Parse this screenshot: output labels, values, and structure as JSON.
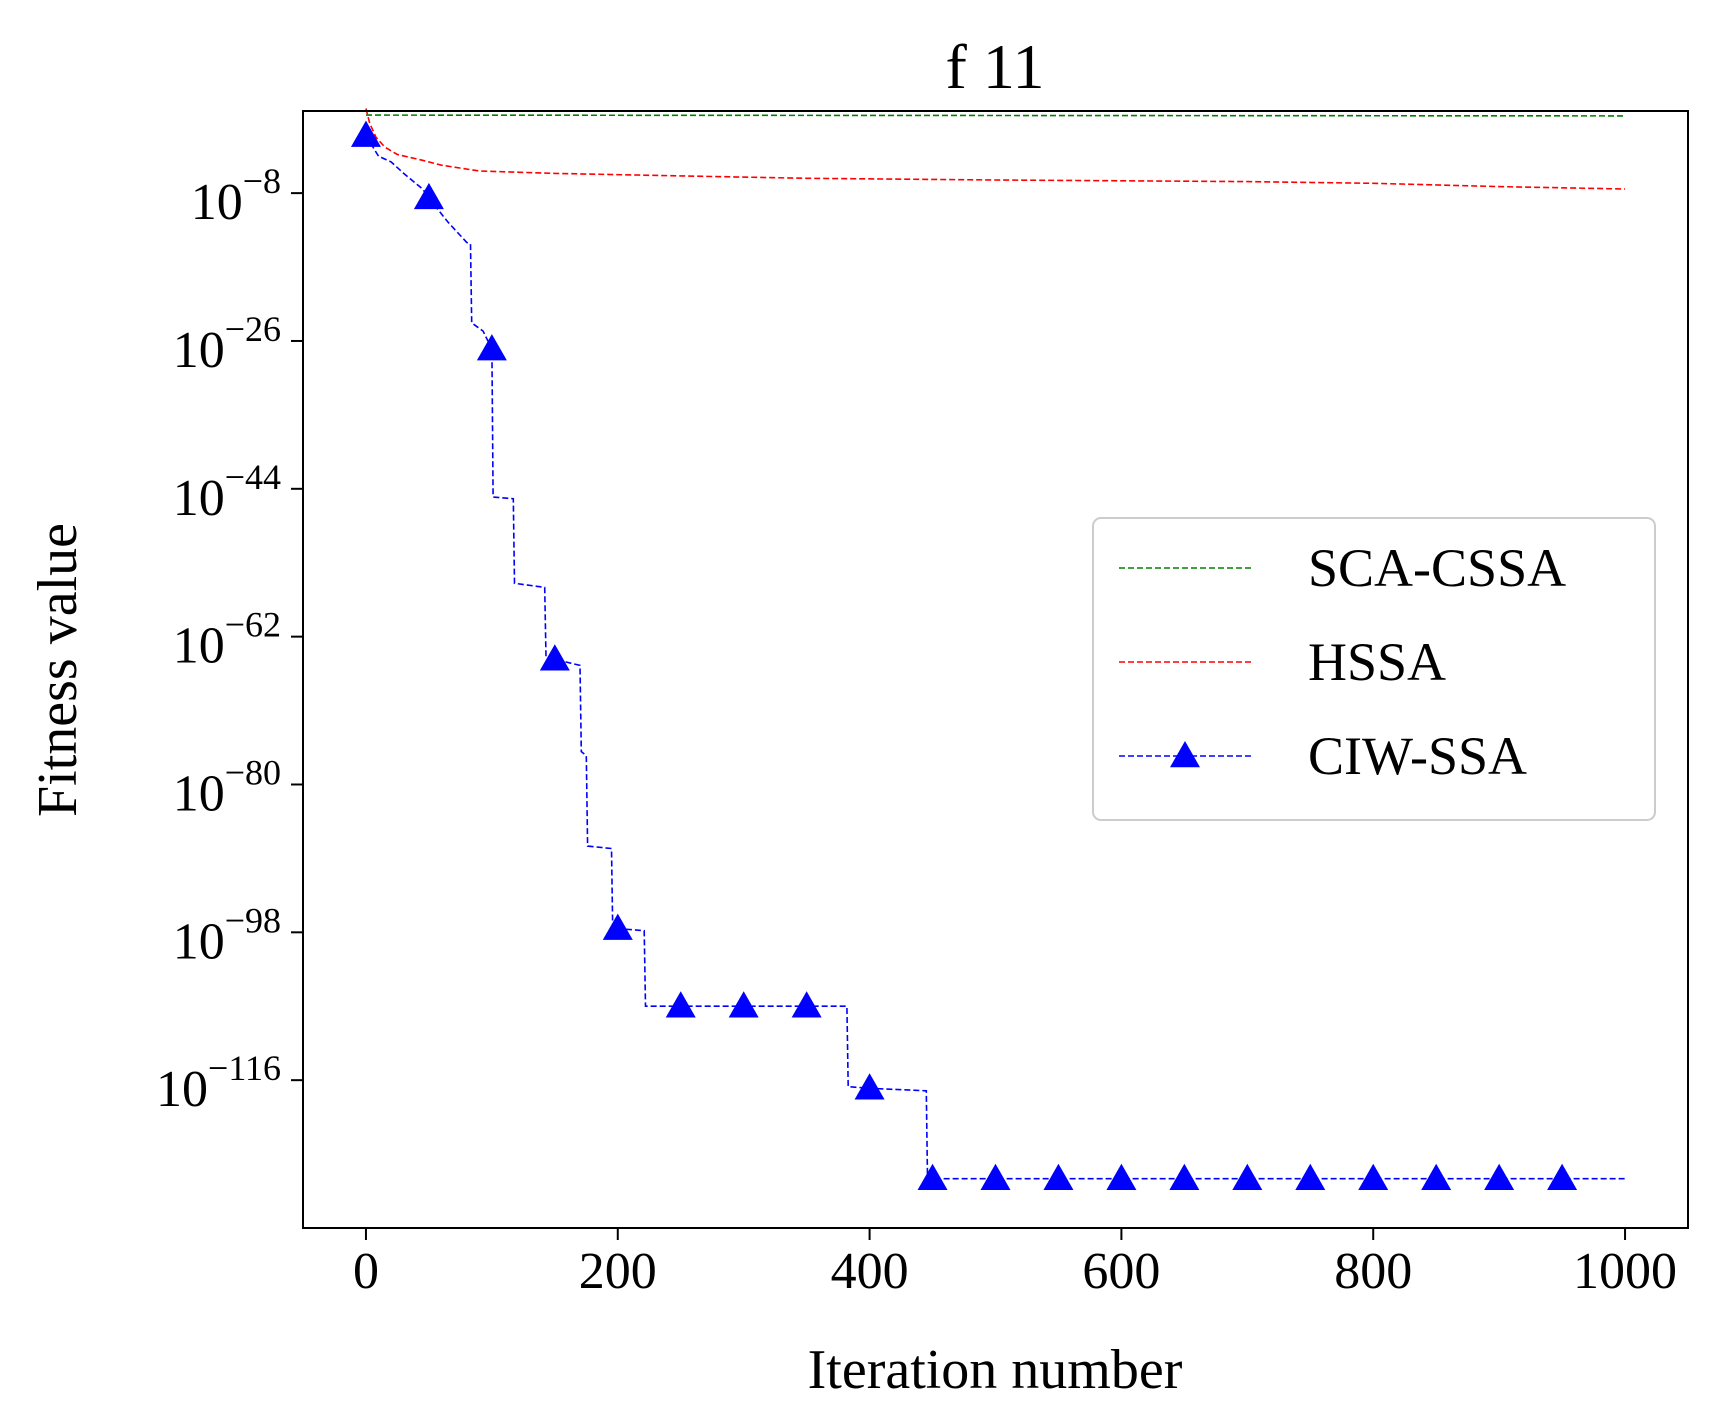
{
  "chart_data": {
    "type": "line",
    "title": "f 11",
    "xlabel": "Iteration number",
    "ylabel": "Fitness value",
    "xlim": [
      -50,
      1050
    ],
    "xticks": [
      0,
      200,
      400,
      600,
      800,
      1000
    ],
    "y_scale": "log",
    "ylim_log10": [
      -134,
      2
    ],
    "yticks_log10": [
      -8,
      -26,
      -44,
      -62,
      -80,
      -98,
      -116
    ],
    "ytick_base": "10",
    "ytick_exponents": [
      "−8",
      "−26",
      "−44",
      "−62",
      "−80",
      "−98",
      "−116"
    ],
    "legend_position": "center-right",
    "series": [
      {
        "name": "SCA-CSSA",
        "color": "#008000",
        "style": "dashed",
        "marker": "none",
        "points_log10": [
          [
            0,
            1.5
          ],
          [
            1000,
            1.4
          ]
        ]
      },
      {
        "name": "HSSA",
        "color": "#ff0000",
        "style": "dashed",
        "marker": "none",
        "points_log10": [
          [
            0,
            2.3
          ],
          [
            3,
            0.5
          ],
          [
            8,
            -1.2
          ],
          [
            15,
            -2.4
          ],
          [
            25,
            -3.3
          ],
          [
            45,
            -4.0
          ],
          [
            60,
            -4.6
          ],
          [
            90,
            -5.3
          ],
          [
            150,
            -5.6
          ],
          [
            250,
            -5.9
          ],
          [
            350,
            -6.2
          ],
          [
            500,
            -6.4
          ],
          [
            600,
            -6.5
          ],
          [
            700,
            -6.6
          ],
          [
            800,
            -6.8
          ],
          [
            900,
            -7.2
          ],
          [
            1000,
            -7.5
          ]
        ]
      },
      {
        "name": "CIW-SSA",
        "color": "#0000ff",
        "style": "dashed",
        "marker": "triangle",
        "marker_every": 50,
        "points_log10": [
          [
            0,
            -1.0
          ],
          [
            10,
            -3.5
          ],
          [
            20,
            -4.2
          ],
          [
            30,
            -5.6
          ],
          [
            45,
            -7.5
          ],
          [
            52,
            -9.0
          ],
          [
            65,
            -11.5
          ],
          [
            80,
            -14.0
          ],
          [
            83,
            -14.2
          ],
          [
            84,
            -23.8
          ],
          [
            93,
            -24.8
          ],
          [
            100,
            -27.0
          ],
          [
            101,
            -45.0
          ],
          [
            117,
            -45.2
          ],
          [
            118,
            -55.5
          ],
          [
            142,
            -56.0
          ],
          [
            143,
            -64.5
          ],
          [
            170,
            -65.5
          ],
          [
            171,
            -76.0
          ],
          [
            175,
            -76.5
          ],
          [
            176,
            -87.5
          ],
          [
            195,
            -87.8
          ],
          [
            196,
            -97.5
          ],
          [
            221,
            -97.8
          ],
          [
            222,
            -107.0
          ],
          [
            382,
            -107.0
          ],
          [
            383,
            -116.8
          ],
          [
            402,
            -117.0
          ],
          [
            445,
            -117.3
          ],
          [
            446,
            -128.0
          ],
          [
            1000,
            -128.0
          ]
        ]
      }
    ]
  }
}
